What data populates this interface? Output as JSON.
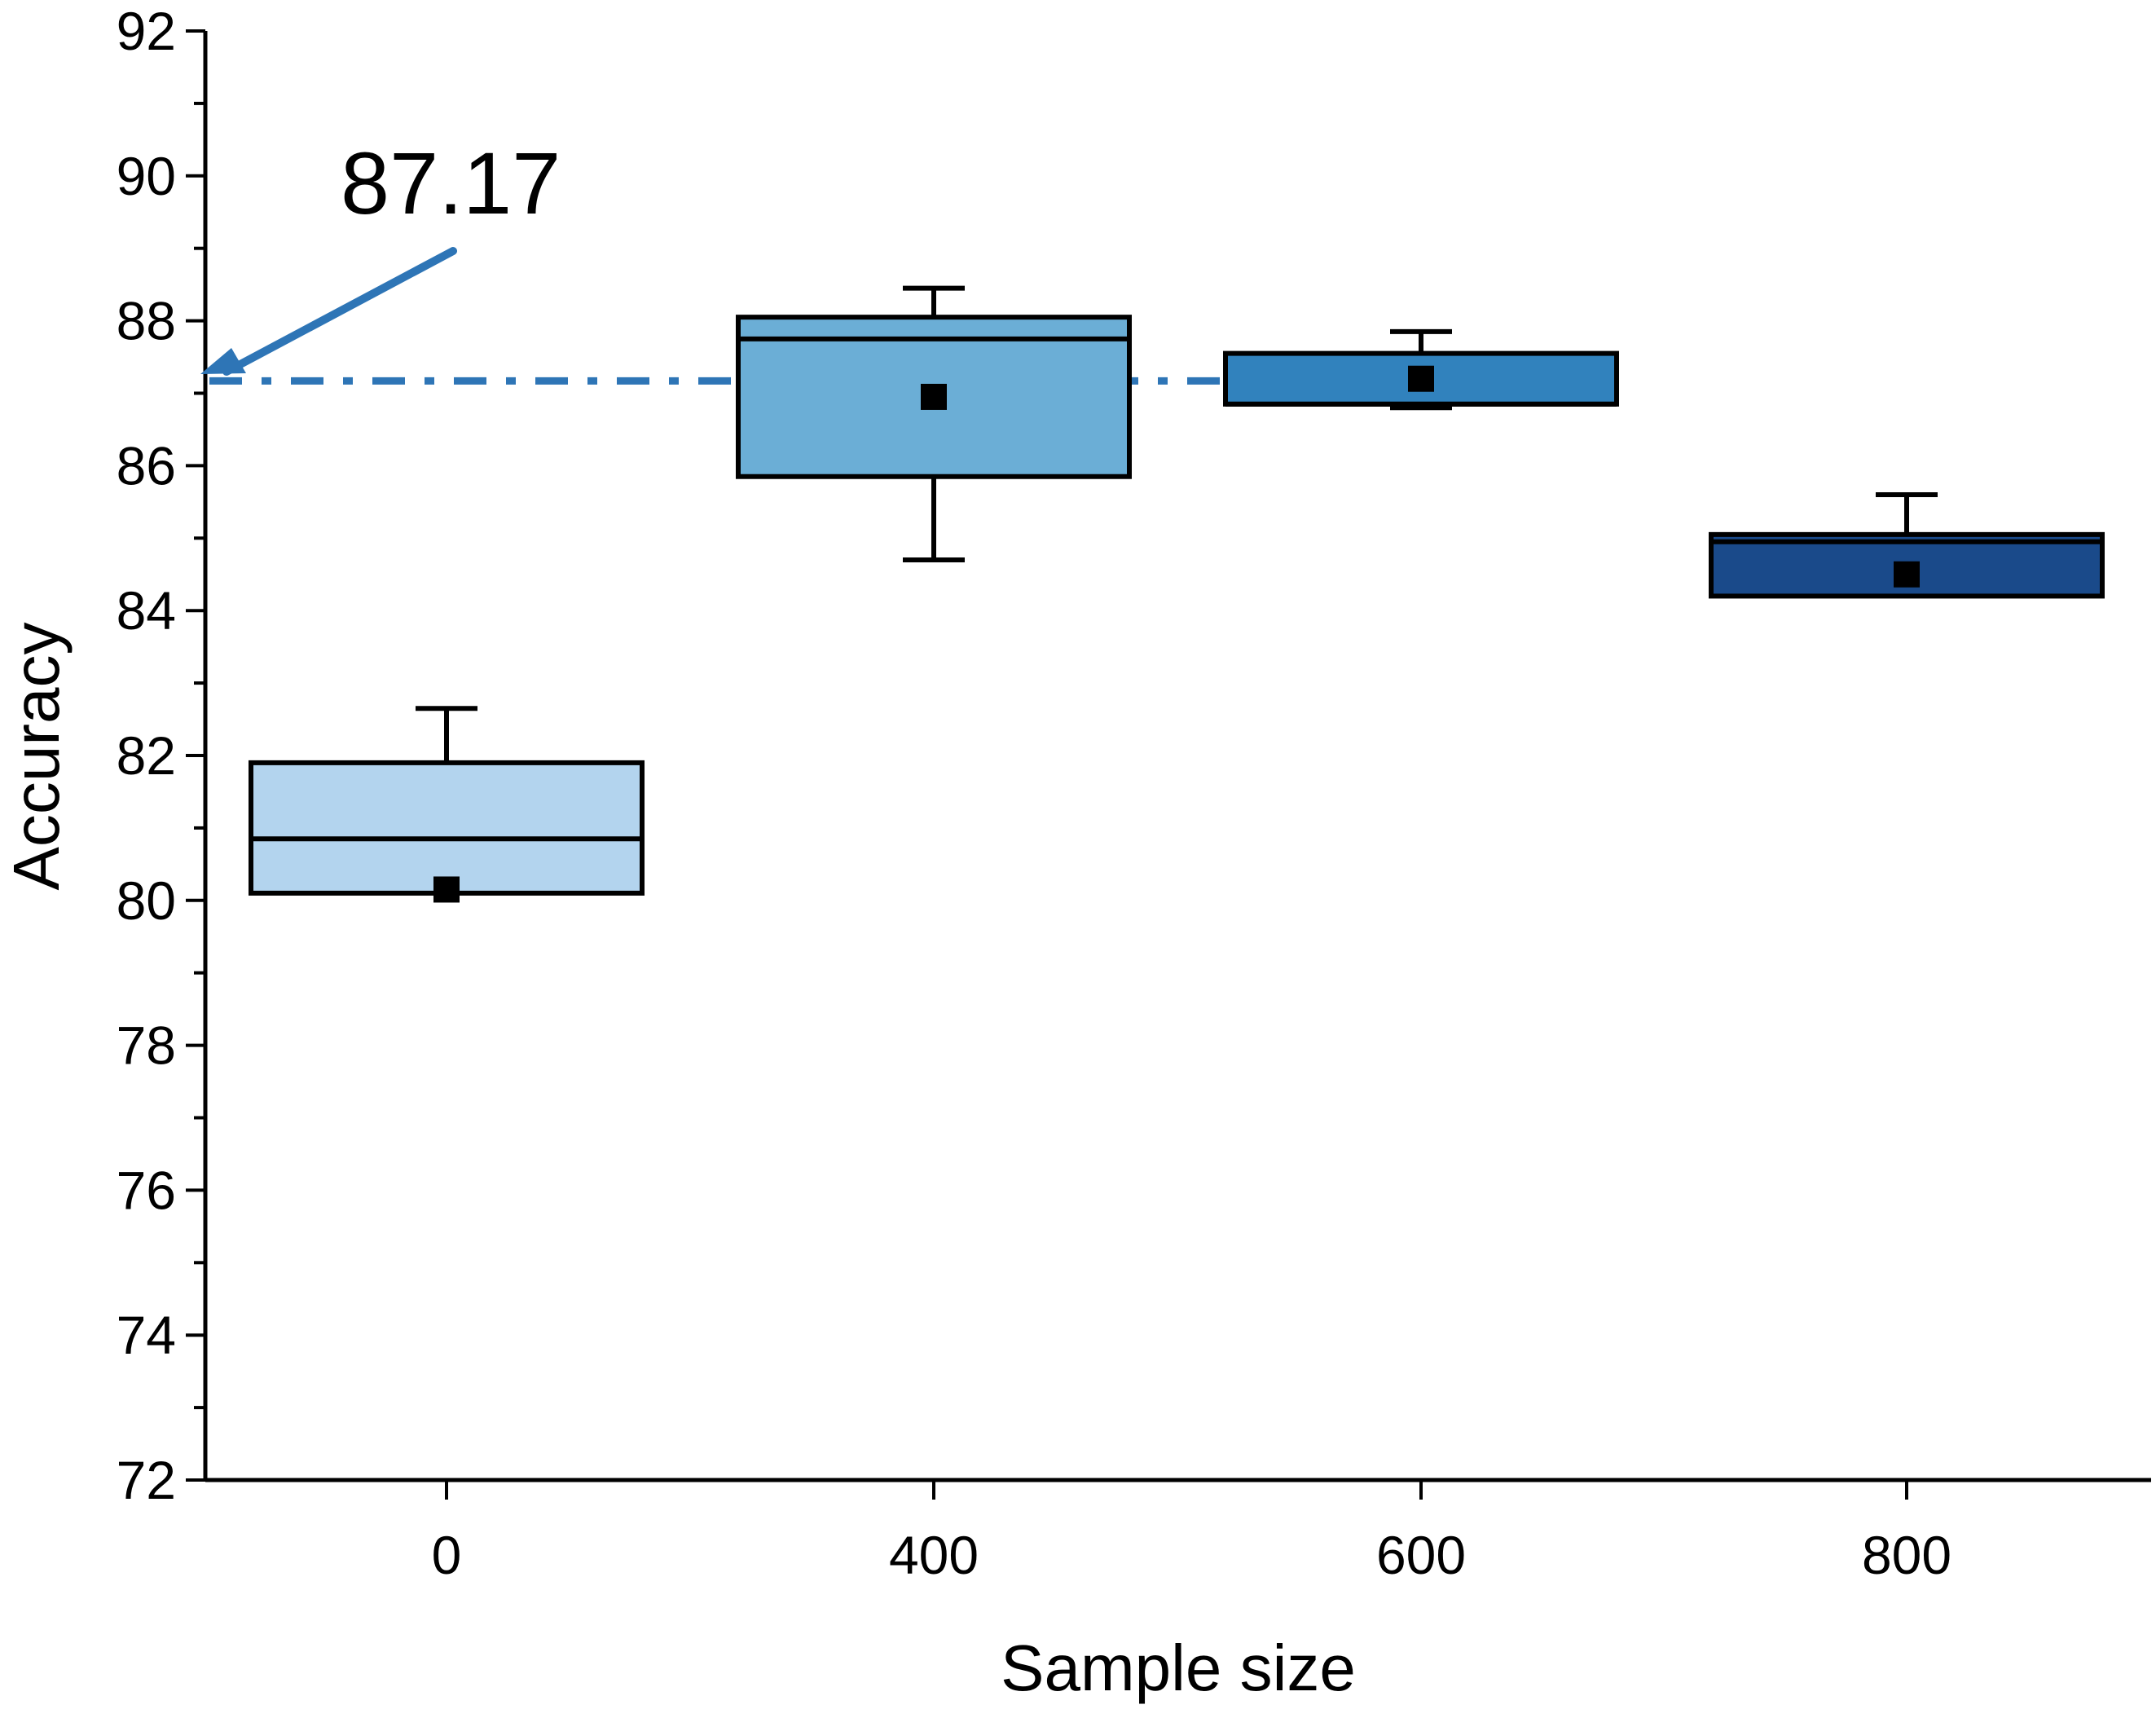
{
  "chart_data": {
    "type": "box",
    "title": "",
    "xlabel": "Sample size",
    "ylabel": "Accuracy",
    "ylim": [
      72,
      92
    ],
    "y_major_ticks": [
      72,
      74,
      76,
      78,
      80,
      82,
      84,
      86,
      88,
      90,
      92
    ],
    "y_minor_step": 1,
    "categories": [
      "0",
      "400",
      "600",
      "800"
    ],
    "boxes": [
      {
        "category": "0",
        "whisker_low": 80.1,
        "q1": 80.1,
        "median": 80.85,
        "q3": 81.9,
        "whisker_high": 82.65,
        "mean": 80.15,
        "color": "#b3d4ee"
      },
      {
        "category": "400",
        "whisker_low": 84.7,
        "q1": 85.85,
        "median": 87.75,
        "q3": 88.05,
        "whisker_high": 88.45,
        "mean": 86.95,
        "color": "#6baed6"
      },
      {
        "category": "600",
        "whisker_low": 86.8,
        "q1": 86.85,
        "median": 86.85,
        "q3": 87.55,
        "whisker_high": 87.85,
        "mean": 87.2,
        "color": "#3182bd"
      },
      {
        "category": "800",
        "whisker_low": 84.2,
        "q1": 84.2,
        "median": 84.95,
        "q3": 85.05,
        "whisker_high": 85.6,
        "mean": 84.5,
        "color": "#1a4a8a"
      }
    ],
    "reference_line": {
      "value": 87.17,
      "style": "dash-dot",
      "color": "#2e75b6"
    },
    "annotation": {
      "text": "87.17",
      "points_to": 87.17,
      "arrow_color": "#2e75b6"
    }
  }
}
